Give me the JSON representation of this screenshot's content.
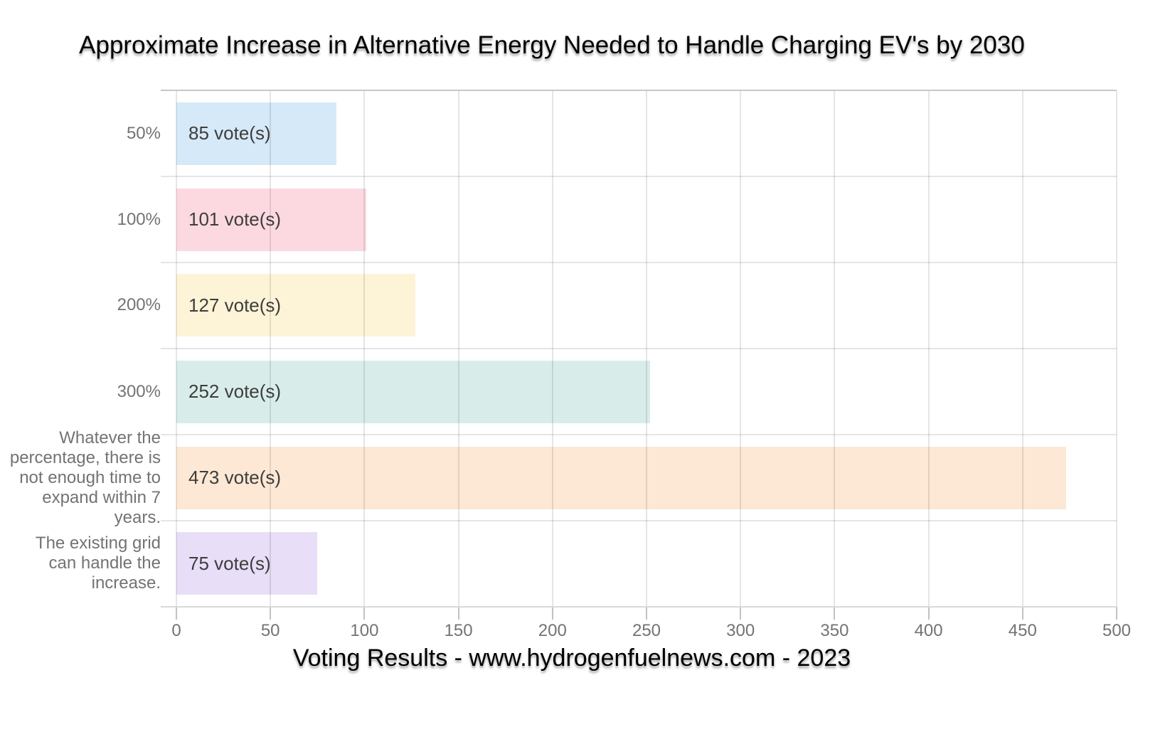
{
  "page": {
    "title": "Approximate Increase in Alternative Energy Needed to Handle Charging EV's by 2030",
    "caption": "Voting Results - www.hydrogenfuelnews.com - 2023"
  },
  "chart_data": {
    "type": "bar",
    "orientation": "horizontal",
    "title": "Approximate Increase in Alternative Energy Needed to Handle Charging EV's by 2030",
    "footer": "Voting Results - www.hydrogenfuelnews.com - 2023",
    "categories": [
      "50%",
      "100%",
      "200%",
      "300%",
      "Whatever the percentage, there is not enough time to expand within 7 years.",
      "The existing grid can handle the increase."
    ],
    "categories_lines": [
      [
        "50%"
      ],
      [
        "100%"
      ],
      [
        "200%"
      ],
      [
        "300%"
      ],
      [
        "Whatever the",
        "percentage, there is",
        "not enough time to",
        "expand within 7",
        "years."
      ],
      [
        "The existing grid",
        "can handle the",
        "increase."
      ]
    ],
    "values": [
      85,
      101,
      127,
      252,
      473,
      75
    ],
    "value_labels": [
      "85 vote(s)",
      "101 vote(s)",
      "127 vote(s)",
      "252 vote(s)",
      "473 vote(s)",
      "75 vote(s)"
    ],
    "bar_colors": [
      "#d5e9f8",
      "#fcd9e1",
      "#fdf3d7",
      "#d8edea",
      "#fce8d4",
      "#e8def7"
    ],
    "xlabel": "",
    "ylabel": "",
    "xlim": [
      0,
      500
    ],
    "x_ticks": [
      0,
      50,
      100,
      150,
      200,
      250,
      300,
      350,
      400,
      450,
      500
    ],
    "grid": true,
    "legend": "none"
  },
  "colors": {
    "background": "#ffffff",
    "vertical_gridline": "rgba(0,0,0,0.10)",
    "row_gridline": "#e5e5e5",
    "plot_top_border": "#c7c7c7",
    "axis_line": "#d9d9d9",
    "tick_mark": "#c2c2c2",
    "tick_label_text": "#737373",
    "category_label_text": "#737373",
    "value_label_text": "#3d3d3d",
    "title_text": "#000000"
  }
}
